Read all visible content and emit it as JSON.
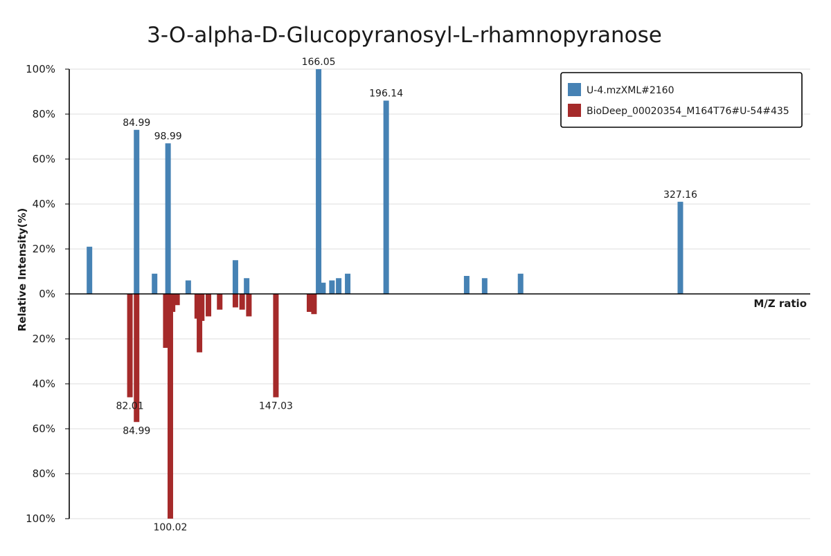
{
  "chart_data": {
    "type": "bar",
    "title": "3-O-alpha-D-Glucopyranosyl-L-rhamnopyranose",
    "xlabel": "M/Z ratio",
    "ylabel": "Relative Intensity(%)",
    "upper_ticks": [
      "100%",
      "80%",
      "60%",
      "40%",
      "20%",
      "0%"
    ],
    "lower_ticks": [
      "20%",
      "40%",
      "60%",
      "80%",
      "100%"
    ],
    "ylim": [
      -100,
      100
    ],
    "xlim": [
      55,
      385
    ],
    "grid": true,
    "legend_position": "top-right",
    "series": [
      {
        "name": "U-4.mzXML#2160",
        "color": "#4682b4",
        "direction": "up",
        "points": [
          {
            "mz": 64.0,
            "intensity": 21
          },
          {
            "mz": 84.99,
            "intensity": 73,
            "label": "84.99"
          },
          {
            "mz": 93.0,
            "intensity": 9
          },
          {
            "mz": 98.99,
            "intensity": 67,
            "label": "98.99"
          },
          {
            "mz": 108.0,
            "intensity": 6
          },
          {
            "mz": 129.0,
            "intensity": 15
          },
          {
            "mz": 134.0,
            "intensity": 7
          },
          {
            "mz": 166.05,
            "intensity": 100,
            "label": "166.05"
          },
          {
            "mz": 168.0,
            "intensity": 5
          },
          {
            "mz": 172.0,
            "intensity": 6
          },
          {
            "mz": 175.0,
            "intensity": 7
          },
          {
            "mz": 179.0,
            "intensity": 9
          },
          {
            "mz": 196.14,
            "intensity": 86,
            "label": "196.14"
          },
          {
            "mz": 232.0,
            "intensity": 8
          },
          {
            "mz": 240.0,
            "intensity": 7
          },
          {
            "mz": 256.0,
            "intensity": 9
          },
          {
            "mz": 327.16,
            "intensity": 41,
            "label": "327.16"
          }
        ]
      },
      {
        "name": "BioDeep_00020354_M164T76#U-54#435",
        "color": "#a52a2a",
        "direction": "down",
        "points": [
          {
            "mz": 82.01,
            "intensity": 46,
            "label": "82.01"
          },
          {
            "mz": 84.99,
            "intensity": 57,
            "label": "84.99"
          },
          {
            "mz": 98.0,
            "intensity": 24
          },
          {
            "mz": 100.02,
            "intensity": 100,
            "label": "100.02"
          },
          {
            "mz": 101.0,
            "intensity": 8
          },
          {
            "mz": 103.0,
            "intensity": 5
          },
          {
            "mz": 112.0,
            "intensity": 11
          },
          {
            "mz": 113.0,
            "intensity": 26
          },
          {
            "mz": 114.0,
            "intensity": 12
          },
          {
            "mz": 117.0,
            "intensity": 10
          },
          {
            "mz": 122.0,
            "intensity": 7
          },
          {
            "mz": 129.0,
            "intensity": 6
          },
          {
            "mz": 132.0,
            "intensity": 7
          },
          {
            "mz": 135.0,
            "intensity": 10
          },
          {
            "mz": 147.03,
            "intensity": 46,
            "label": "147.03"
          },
          {
            "mz": 162.0,
            "intensity": 8
          },
          {
            "mz": 164.0,
            "intensity": 9
          }
        ]
      }
    ]
  }
}
